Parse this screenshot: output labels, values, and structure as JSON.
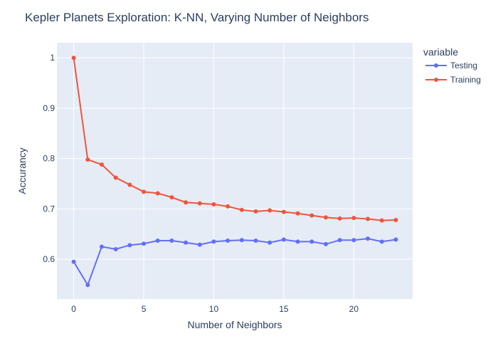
{
  "chart_data": {
    "type": "line",
    "title": "Kepler Planets Exploration: K-NN, Varying Number of Neighbors",
    "xlabel": "Number of Neighbors",
    "ylabel": "Accurancy",
    "xlim": [
      -1.2,
      24.2
    ],
    "ylim": [
      0.521,
      1.03
    ],
    "xticks": [
      0,
      5,
      10,
      15,
      20
    ],
    "xtick_labels": [
      "0",
      "5",
      "10",
      "15",
      "20"
    ],
    "yticks": [
      0.6,
      0.7,
      0.8,
      0.9,
      1
    ],
    "ytick_labels": [
      "0.6",
      "0.7",
      "0.8",
      "0.9",
      "1"
    ],
    "grid": true,
    "legend_position": "top-right",
    "legend_title": "variable",
    "x": [
      0,
      1,
      2,
      3,
      4,
      5,
      6,
      7,
      8,
      9,
      10,
      11,
      12,
      13,
      14,
      15,
      16,
      17,
      18,
      19,
      20,
      21,
      22,
      23
    ],
    "series": [
      {
        "name": "Testing",
        "color": "#636efa",
        "values": [
          0.595,
          0.549,
          0.625,
          0.62,
          0.628,
          0.631,
          0.637,
          0.637,
          0.633,
          0.629,
          0.635,
          0.637,
          0.638,
          0.637,
          0.633,
          0.639,
          0.635,
          0.635,
          0.63,
          0.638,
          0.638,
          0.641,
          0.635,
          0.639
        ]
      },
      {
        "name": "Training",
        "color": "#ef553b",
        "values": [
          1.0,
          0.798,
          0.788,
          0.762,
          0.748,
          0.734,
          0.731,
          0.723,
          0.713,
          0.711,
          0.709,
          0.705,
          0.698,
          0.695,
          0.697,
          0.694,
          0.691,
          0.687,
          0.683,
          0.681,
          0.682,
          0.68,
          0.677,
          0.678
        ]
      }
    ]
  }
}
